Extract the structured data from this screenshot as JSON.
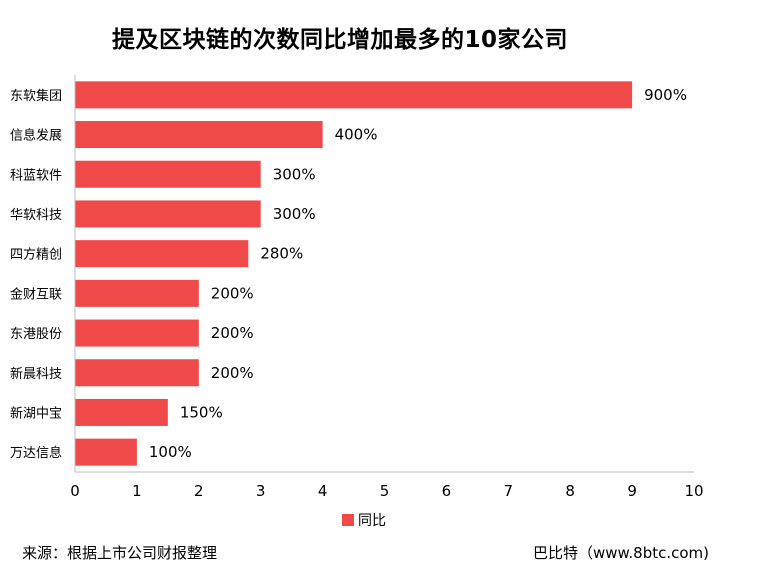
{
  "chart_data": {
    "type": "bar",
    "orientation": "horizontal",
    "title": "提及区块链的次数同比增加最多的10家公司",
    "categories": [
      "东软集团",
      "信息发展",
      "科蓝软件",
      "华软科技",
      "四方精创",
      "金财互联",
      "东港股份",
      "新晨科技",
      "新湖中宝",
      "万达信息"
    ],
    "series": [
      {
        "name": "同比",
        "values": [
          9,
          4,
          3,
          3,
          2.8,
          2,
          2,
          2,
          1.5,
          1
        ],
        "labels": [
          "900%",
          "400%",
          "300%",
          "300%",
          "280%",
          "200%",
          "200%",
          "200%",
          "150%",
          "100%"
        ],
        "color": "#f0494a"
      }
    ],
    "xlim": [
      0,
      10
    ],
    "xticks": [
      "0",
      "1",
      "2",
      "3",
      "4",
      "5",
      "6",
      "7",
      "8",
      "9",
      "10"
    ],
    "grid": false,
    "legend_position": "bottom"
  },
  "footer": {
    "source": "来源：根据上市公司财报整理",
    "credit": "巴比特（www.8btc.com)"
  }
}
